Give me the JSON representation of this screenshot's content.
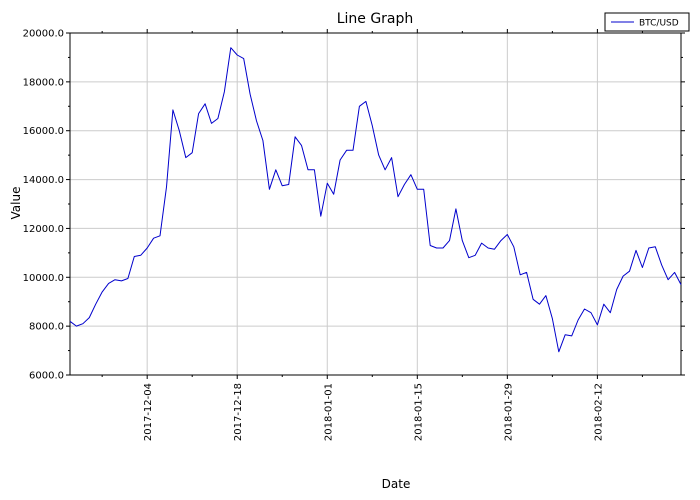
{
  "chart_data": {
    "type": "line",
    "title": "Line Graph",
    "xlabel": "Date",
    "ylabel": "Value",
    "ylim": [
      6000,
      20000
    ],
    "y_ticks": [
      "6000.0",
      "8000.0",
      "10000.0",
      "12000.0",
      "14000.0",
      "16000.0",
      "18000.0",
      "20000.0"
    ],
    "x_tick_labels": [
      "2017-12-04",
      "2017-12-18",
      "2018-01-01",
      "2018-01-15",
      "2018-01-29",
      "2018-02-12"
    ],
    "xlim": [
      "2017-11-22",
      "2018-02-25"
    ],
    "grid": true,
    "legend_position": "top-right",
    "colors": {
      "series": "#0000cc",
      "grid": "#cccccc"
    },
    "series": [
      {
        "name": "BTC/USD",
        "x": [
          "2017-11-22",
          "2017-11-23",
          "2017-11-24",
          "2017-11-25",
          "2017-11-26",
          "2017-11-27",
          "2017-11-28",
          "2017-11-29",
          "2017-11-30",
          "2017-12-01",
          "2017-12-02",
          "2017-12-03",
          "2017-12-04",
          "2017-12-05",
          "2017-12-06",
          "2017-12-07",
          "2017-12-08",
          "2017-12-09",
          "2017-12-10",
          "2017-12-11",
          "2017-12-12",
          "2017-12-13",
          "2017-12-14",
          "2017-12-15",
          "2017-12-16",
          "2017-12-17",
          "2017-12-18",
          "2017-12-19",
          "2017-12-20",
          "2017-12-21",
          "2017-12-22",
          "2017-12-23",
          "2017-12-24",
          "2017-12-25",
          "2017-12-26",
          "2017-12-27",
          "2017-12-28",
          "2017-12-29",
          "2017-12-30",
          "2017-12-31",
          "2018-01-01",
          "2018-01-02",
          "2018-01-03",
          "2018-01-04",
          "2018-01-05",
          "2018-01-06",
          "2018-01-07",
          "2018-01-08",
          "2018-01-09",
          "2018-01-10",
          "2018-01-11",
          "2018-01-12",
          "2018-01-13",
          "2018-01-14",
          "2018-01-15",
          "2018-01-16",
          "2018-01-17",
          "2018-01-18",
          "2018-01-19",
          "2018-01-20",
          "2018-01-21",
          "2018-01-22",
          "2018-01-23",
          "2018-01-24",
          "2018-01-25",
          "2018-01-26",
          "2018-01-27",
          "2018-01-28",
          "2018-01-29",
          "2018-01-30",
          "2018-01-31",
          "2018-02-01",
          "2018-02-02",
          "2018-02-03",
          "2018-02-04",
          "2018-02-05",
          "2018-02-06",
          "2018-02-07",
          "2018-02-08",
          "2018-02-09",
          "2018-02-10",
          "2018-02-11",
          "2018-02-12",
          "2018-02-13",
          "2018-02-14",
          "2018-02-15",
          "2018-02-16",
          "2018-02-17",
          "2018-02-18",
          "2018-02-19",
          "2018-02-20",
          "2018-02-21",
          "2018-02-22",
          "2018-02-23",
          "2018-02-24",
          "2018-02-25"
        ],
        "values": [
          8200,
          8000,
          8100,
          8350,
          8900,
          9400,
          9750,
          9900,
          9850,
          9950,
          10850,
          10900,
          11200,
          11600,
          11700,
          13700,
          16850,
          16000,
          14900,
          15100,
          16700,
          17100,
          16300,
          16500,
          17600,
          19400,
          19100,
          18950,
          17500,
          16400,
          15600,
          13600,
          14400,
          13750,
          13800,
          15750,
          15400,
          14400,
          14400,
          12500,
          13850,
          13400,
          14800,
          15200,
          15200,
          17000,
          17200,
          16200,
          15000,
          14400,
          14900,
          13300,
          13800,
          14200,
          13600,
          13600,
          11300,
          11200,
          11200,
          11500,
          12800,
          11500,
          10800,
          10900,
          11400,
          11200,
          11150,
          11500,
          11750,
          11250,
          10100,
          10200,
          9100,
          8900,
          9250,
          8300,
          6950,
          7650,
          7600,
          8250,
          8700,
          8550,
          8050,
          8900,
          8550,
          9500,
          10050,
          10250,
          11100,
          10400,
          11200,
          11250,
          10500,
          9900,
          10200,
          9700
        ]
      }
    ]
  }
}
